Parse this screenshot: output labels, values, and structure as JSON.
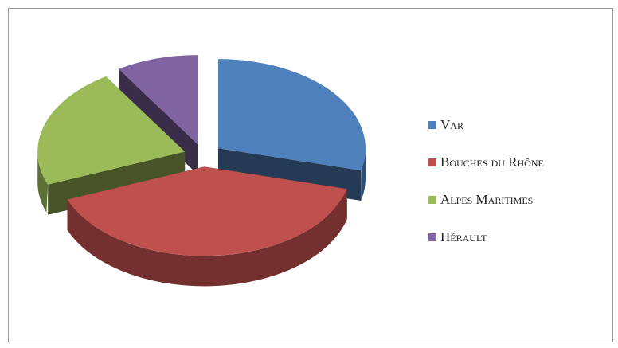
{
  "chart_data": {
    "type": "pie",
    "categories": [
      "Var",
      "Bouches du Rhône",
      "Alpes Maritimes",
      "Hérault"
    ],
    "values": [
      29,
      40,
      22,
      9
    ],
    "colors": [
      "#4f81bd",
      "#c0504d",
      "#9bbb59",
      "#8064a2"
    ],
    "legend": "right"
  }
}
